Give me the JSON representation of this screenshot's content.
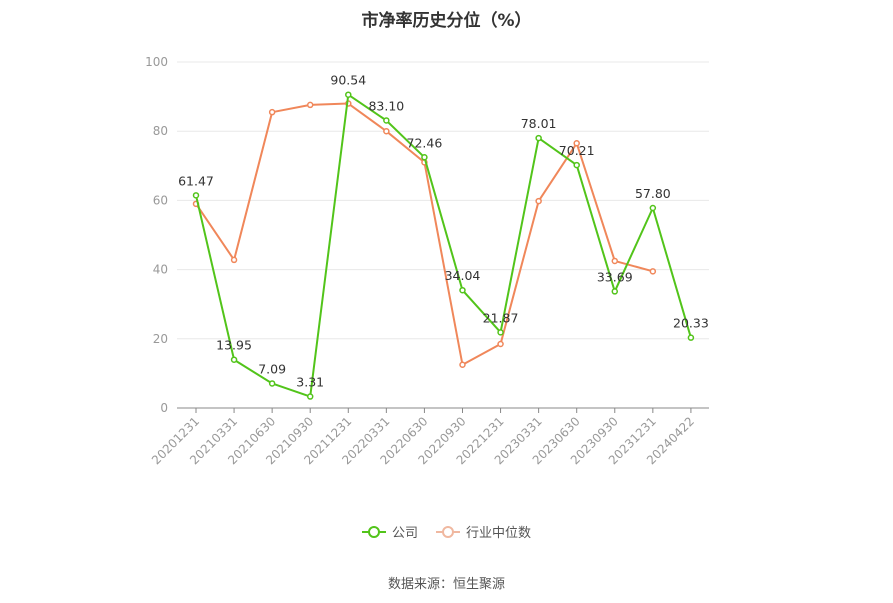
{
  "chart_data": {
    "type": "line",
    "title": "市净率历史分位（%）",
    "source": "数据来源：恒生聚源",
    "categories": [
      "20201231",
      "20210331",
      "20210630",
      "20210930",
      "20211231",
      "20220331",
      "20220630",
      "20220930",
      "20221231",
      "20230331",
      "20230630",
      "20230930",
      "20231231",
      "20240422"
    ],
    "ylim": [
      0,
      100
    ],
    "yticks": [
      0,
      20,
      40,
      60,
      80,
      100
    ],
    "grid": true,
    "legend_position": "bottom",
    "series": [
      {
        "name": "公司",
        "color": "#52c41a",
        "values": [
          61.47,
          13.95,
          7.09,
          3.31,
          90.54,
          83.1,
          72.46,
          34.04,
          21.87,
          78.01,
          70.21,
          33.69,
          57.8,
          20.33
        ],
        "labels": [
          "61.47",
          "13.95",
          "7.09",
          "3.31",
          "90.54",
          "83.10",
          "72.46",
          "34.04",
          "21.87",
          "78.01",
          "70.21",
          "33.69",
          "57.80",
          "20.33"
        ]
      },
      {
        "name": "行业中位数",
        "color": "#f0875a",
        "values": [
          59.0,
          42.8,
          85.5,
          87.6,
          88.0,
          80.0,
          71.0,
          12.5,
          18.5,
          59.8,
          76.5,
          42.5,
          39.5,
          null
        ]
      }
    ]
  }
}
